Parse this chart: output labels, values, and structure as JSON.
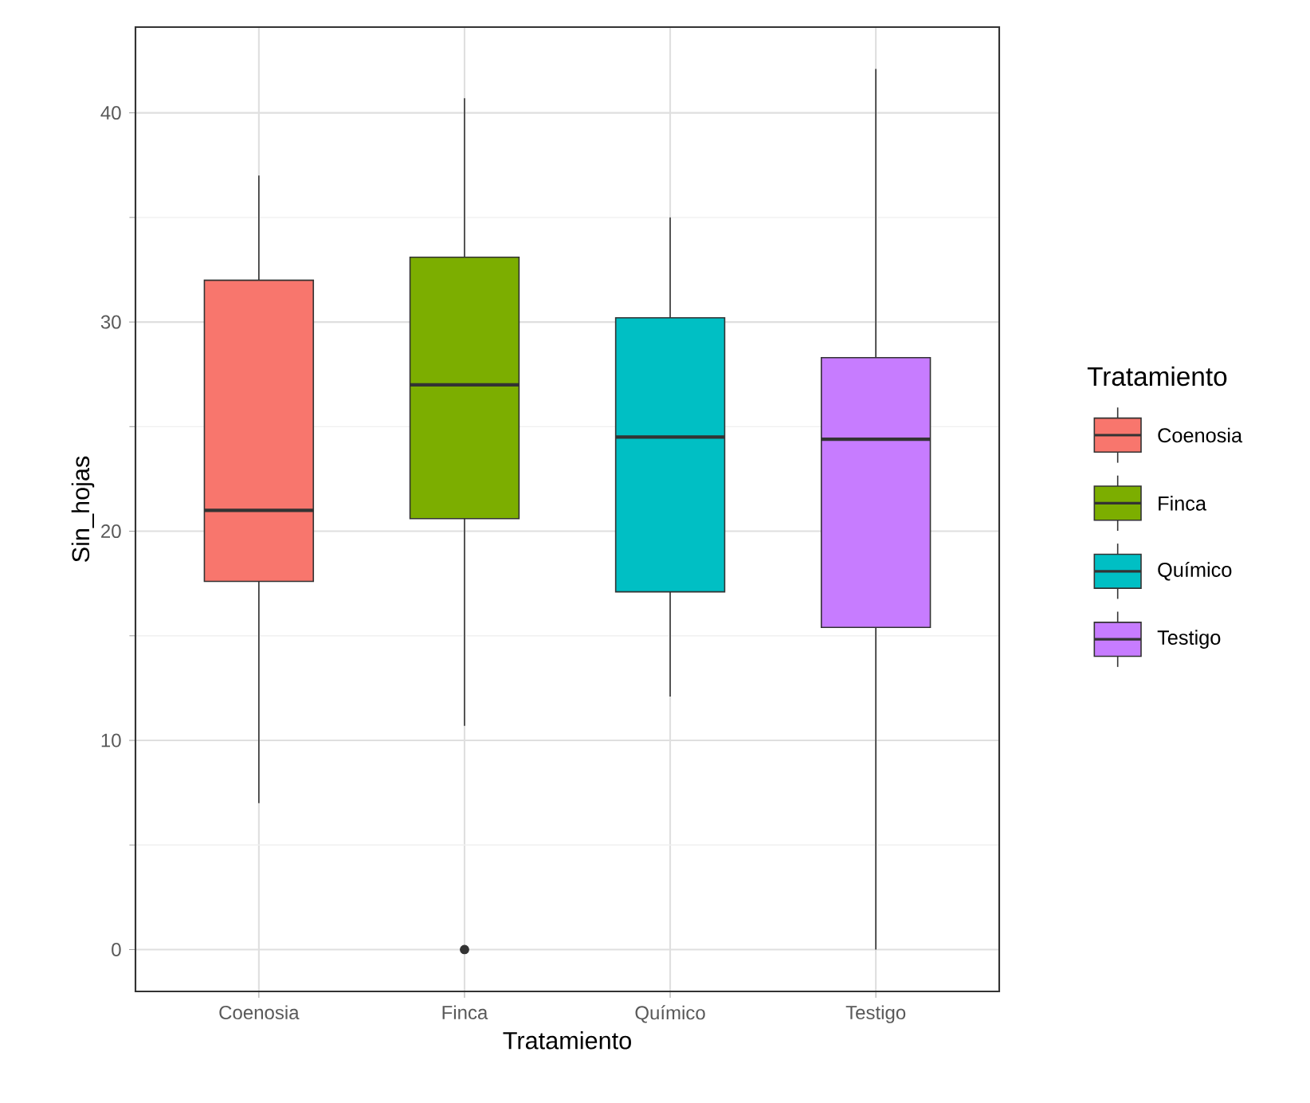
{
  "chart_data": {
    "type": "box",
    "xlabel": "Tratamiento",
    "ylabel": "Sin_hojas",
    "legend_title": "Tratamiento",
    "categories": [
      "Coenosia",
      "Finca",
      "Químico",
      "Testigo"
    ],
    "series": [
      {
        "name": "Coenosia",
        "color": "#f8766d",
        "boxes": [
          {
            "low": 7,
            "q1": 17.6,
            "median": 21,
            "q3": 32,
            "high": 37
          },
          null,
          null,
          null
        ]
      },
      {
        "name": "Finca",
        "color": "#7cae00",
        "boxes": [
          null,
          {
            "low": 10.7,
            "q1": 20.6,
            "median": 27,
            "q3": 33.1,
            "high": 40.7,
            "outliers": [
              0
            ]
          },
          null,
          null
        ]
      },
      {
        "name": "Químico",
        "color": "#00bfc4",
        "boxes": [
          null,
          null,
          {
            "low": 12.1,
            "q1": 17.1,
            "median": 24.5,
            "q3": 30.2,
            "high": 35
          },
          null
        ]
      },
      {
        "name": "Testigo",
        "color": "#c77cff",
        "boxes": [
          null,
          null,
          null,
          {
            "low": 0,
            "q1": 15.4,
            "median": 24.4,
            "q3": 28.3,
            "high": 42.1
          }
        ]
      }
    ],
    "ylim": [
      -2,
      44.1
    ],
    "yticks": [
      0,
      10,
      20,
      30,
      40
    ],
    "grid": true,
    "legend": "right"
  }
}
